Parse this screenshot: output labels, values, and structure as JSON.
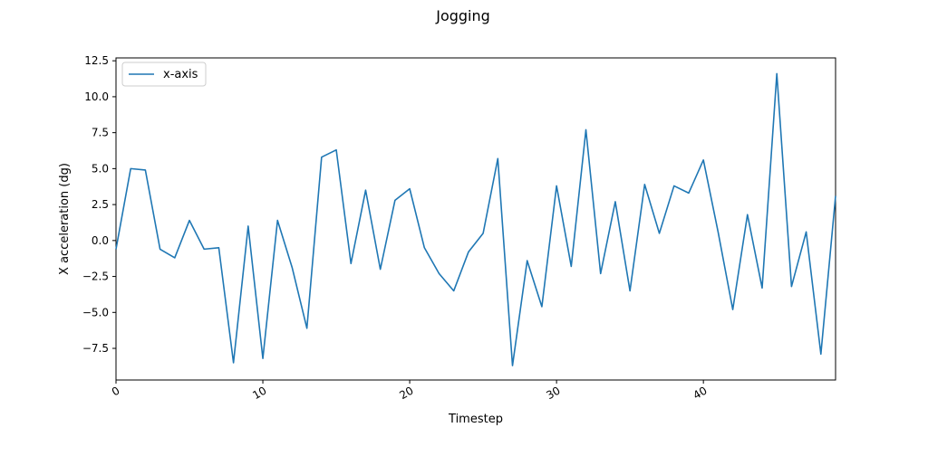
{
  "chart_data": {
    "type": "line",
    "title": "Jogging",
    "xlabel": "Timestep",
    "ylabel": "X acceleration (dg)",
    "xlim": [
      0,
      49
    ],
    "ylim": [
      -9.7,
      12.7
    ],
    "xticks": [
      0,
      10,
      20,
      30,
      40
    ],
    "xtick_labels": [
      "0",
      "10",
      "20",
      "30",
      "40"
    ],
    "yticks": [
      -7.5,
      -5.0,
      -2.5,
      0.0,
      2.5,
      5.0,
      7.5,
      10.0,
      12.5
    ],
    "ytick_labels": [
      "−7.5",
      "−5.0",
      "−2.5",
      "0.0",
      "2.5",
      "5.0",
      "7.5",
      "10.0",
      "12.5"
    ],
    "grid": false,
    "legend_position": "top-left",
    "series": [
      {
        "name": "x-axis",
        "color": "#1f77b4",
        "x": [
          0,
          1,
          2,
          3,
          4,
          5,
          6,
          7,
          8,
          9,
          10,
          11,
          12,
          13,
          14,
          15,
          16,
          17,
          18,
          19,
          20,
          21,
          22,
          23,
          24,
          25,
          26,
          27,
          28,
          29,
          30,
          31,
          32,
          33,
          34,
          35,
          36,
          37,
          38,
          39,
          40,
          41,
          42,
          43,
          44,
          45,
          46,
          47,
          48,
          49
        ],
        "values": [
          -0.6,
          5.0,
          4.9,
          -0.6,
          -1.2,
          1.4,
          -0.6,
          -0.5,
          -8.5,
          1.0,
          -8.2,
          1.4,
          -1.9,
          -6.1,
          5.8,
          6.3,
          -1.6,
          3.5,
          -2.0,
          2.8,
          3.6,
          -0.5,
          -2.3,
          -3.5,
          -0.8,
          0.5,
          5.7,
          -8.7,
          -1.4,
          -4.6,
          3.8,
          -1.8,
          7.7,
          -2.3,
          2.7,
          -3.5,
          3.9,
          0.5,
          3.8,
          3.3,
          5.6,
          0.6,
          -4.8,
          1.8,
          -3.3,
          11.6,
          -3.2,
          0.6,
          -7.9,
          3.1
        ]
      }
    ]
  }
}
